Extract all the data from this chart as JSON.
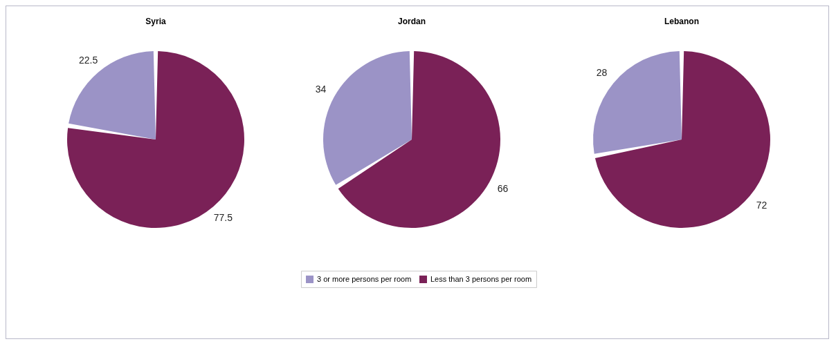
{
  "chart_data": [
    {
      "type": "pie",
      "title": "Syria",
      "categories": [
        null,
        null
      ],
      "values": [
        22.5,
        77.5
      ],
      "colors": [
        "#9b93c6",
        "#7a2157"
      ],
      "data_labels": true
    },
    {
      "type": "pie",
      "title": "Jordan",
      "categories": [
        "3 or more persons per room",
        "Less than 3 persons per room"
      ],
      "values": [
        34,
        66
      ],
      "colors": [
        "#9b93c6",
        "#7a2157"
      ],
      "data_labels": true,
      "legend": "bottom"
    },
    {
      "type": "pie",
      "title": "Lebanon",
      "categories": [
        null,
        null
      ],
      "values": [
        28,
        72
      ],
      "colors": [
        "#9b93c6",
        "#7a2157"
      ],
      "data_labels": true
    }
  ]
}
